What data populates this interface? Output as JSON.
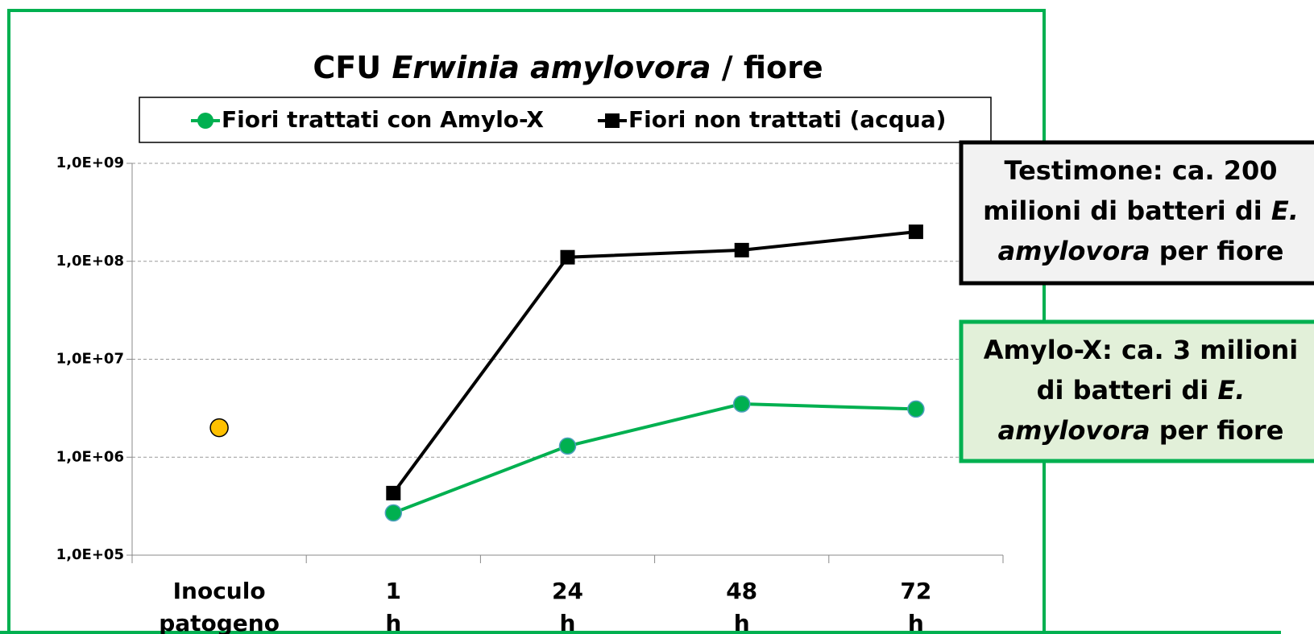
{
  "chart_data": {
    "type": "line",
    "title_parts": [
      {
        "text": "CFU ",
        "italic": false
      },
      {
        "text": "Erwinia amylovora",
        "italic": true
      },
      {
        "text": " / fiore",
        "italic": false
      }
    ],
    "categories": [
      "Inoculo patogeno",
      "1 h",
      "24 h",
      "48 h",
      "72 h"
    ],
    "series": [
      {
        "name": "Fiori trattati con Amylo-X",
        "color": "#00b050",
        "marker": "circle",
        "values": [
          null,
          270000,
          1300000,
          3500000,
          3100000
        ]
      },
      {
        "name": "Fiori non trattati (acqua)",
        "color": "#000000",
        "marker": "square",
        "values": [
          null,
          430000,
          110000000,
          130000000,
          200000000
        ]
      }
    ],
    "inoculum": {
      "value": 2000000,
      "color": "#ffc000"
    },
    "log_scale": true,
    "ylim": [
      100000,
      1000000000
    ],
    "yticks": [
      {
        "value": 100000,
        "label": "1,0E+05"
      },
      {
        "value": 1000000,
        "label": "1,0E+06"
      },
      {
        "value": 10000000,
        "label": "1,0E+07"
      },
      {
        "value": 100000000,
        "label": "1,0E+08"
      },
      {
        "value": 1000000000,
        "label": "1,0E+09"
      }
    ],
    "grid": true,
    "legend": "top",
    "annotations": [
      {
        "style": "dark",
        "lines": [
          [
            {
              "text": "Testimone: ca. 200",
              "italic": false
            }
          ],
          [
            {
              "text": "milioni di batteri di ",
              "italic": false
            },
            {
              "text": "E.",
              "italic": true
            }
          ],
          [
            {
              "text": "amylovora",
              "italic": true
            },
            {
              "text": " per fiore",
              "italic": false
            }
          ]
        ]
      },
      {
        "style": "green",
        "lines": [
          [
            {
              "text": "Amylo-X: ca. 3 milioni",
              "italic": false
            }
          ],
          [
            {
              "text": "di batteri di ",
              "italic": false
            },
            {
              "text": "E.",
              "italic": true
            }
          ],
          [
            {
              "text": "amylovora",
              "italic": true
            },
            {
              "text": " per fiore",
              "italic": false
            }
          ]
        ]
      }
    ]
  }
}
